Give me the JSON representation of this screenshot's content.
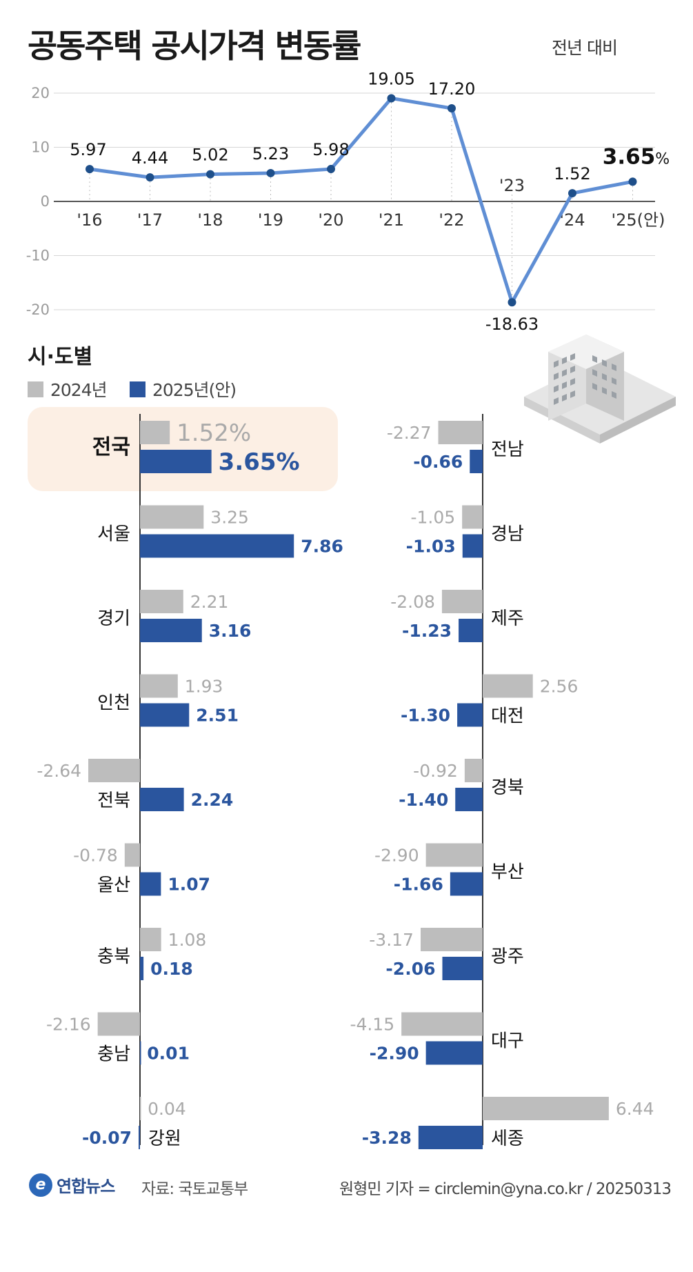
{
  "header": {
    "title": "공동주택 공시가격 변동률",
    "unit_note": "전년 대비"
  },
  "section": {
    "title": "시·도별",
    "legend": [
      {
        "label": "2024년",
        "color": "#bdbdbd"
      },
      {
        "label": "2025년(안)",
        "color": "#2a559e"
      }
    ]
  },
  "chart_data": [
    {
      "type": "line",
      "x": [
        "'16",
        "'17",
        "'18",
        "'19",
        "'20",
        "'21",
        "'22",
        "'23",
        "'24",
        "'25(안)"
      ],
      "series": [
        {
          "values": [
            5.97,
            4.44,
            5.02,
            5.23,
            5.98,
            19.05,
            17.2,
            -18.63,
            1.52,
            3.65
          ]
        }
      ],
      "point_labels": [
        "5.97",
        "4.44",
        "5.02",
        "5.23",
        "5.98",
        "19.05",
        "17.20",
        "-18.63",
        "1.52",
        "3.65"
      ],
      "highlight_suffix": "%",
      "ylim": [
        -20,
        20
      ],
      "yticks": [
        "20",
        "10",
        "0",
        "-10",
        "-20"
      ],
      "grid": true,
      "line_color": "#5f8ed4",
      "point_color": "#1e4f8a"
    },
    {
      "type": "bar",
      "orientation": "horizontal",
      "series_names": [
        "2024년",
        "2025년(안)"
      ],
      "highlight_note": "%",
      "colors": {
        "y2024": "#bdbdbd",
        "y2025": "#2a559e",
        "highlight_bg": "#fcefe4"
      },
      "regions": [
        {
          "name": "전국",
          "v2024": 1.52,
          "v2025": 3.65,
          "l2024": "1.52",
          "l2025": "3.65",
          "highlight": true
        },
        {
          "name": "서울",
          "v2024": 3.25,
          "v2025": 7.86,
          "l2024": "3.25",
          "l2025": "7.86"
        },
        {
          "name": "경기",
          "v2024": 2.21,
          "v2025": 3.16,
          "l2024": "2.21",
          "l2025": "3.16"
        },
        {
          "name": "인천",
          "v2024": 1.93,
          "v2025": 2.51,
          "l2024": "1.93",
          "l2025": "2.51"
        },
        {
          "name": "전북",
          "v2024": -2.64,
          "v2025": 2.24,
          "l2024": "-2.64",
          "l2025": "2.24"
        },
        {
          "name": "울산",
          "v2024": -0.78,
          "v2025": 1.07,
          "l2024": "-0.78",
          "l2025": "1.07"
        },
        {
          "name": "충북",
          "v2024": 1.08,
          "v2025": 0.18,
          "l2024": "1.08",
          "l2025": "0.18"
        },
        {
          "name": "충남",
          "v2024": -2.16,
          "v2025": 0.01,
          "l2024": "-2.16",
          "l2025": "0.01"
        },
        {
          "name": "강원",
          "v2024": 0.04,
          "v2025": -0.07,
          "l2024": "0.04",
          "l2025": "-0.07"
        },
        {
          "name": "전남",
          "v2024": -2.27,
          "v2025": -0.66,
          "l2024": "-2.27",
          "l2025": "-0.66"
        },
        {
          "name": "경남",
          "v2024": -1.05,
          "v2025": -1.03,
          "l2024": "-1.05",
          "l2025": "-1.03"
        },
        {
          "name": "제주",
          "v2024": -2.08,
          "v2025": -1.23,
          "l2024": "-2.08",
          "l2025": "-1.23"
        },
        {
          "name": "대전",
          "v2024": 2.56,
          "v2025": -1.3,
          "l2024": "2.56",
          "l2025": "-1.30"
        },
        {
          "name": "경북",
          "v2024": -0.92,
          "v2025": -1.4,
          "l2024": "-0.92",
          "l2025": "-1.40"
        },
        {
          "name": "부산",
          "v2024": -2.9,
          "v2025": -1.66,
          "l2024": "-2.90",
          "l2025": "-1.66"
        },
        {
          "name": "광주",
          "v2024": -3.17,
          "v2025": -2.06,
          "l2024": "-3.17",
          "l2025": "-2.06"
        },
        {
          "name": "대구",
          "v2024": -4.15,
          "v2025": -2.9,
          "l2024": "-4.15",
          "l2025": "-2.90"
        },
        {
          "name": "세종",
          "v2024": 6.44,
          "v2025": -3.28,
          "l2024": "6.44",
          "l2025": "-3.28"
        }
      ]
    }
  ],
  "footer": {
    "logo_mark": "e",
    "logo_name": "연합뉴스",
    "source": "자료: 국토교통부",
    "credit": "원형민 기자 = circlemin@yna.co.kr / 20250313"
  }
}
